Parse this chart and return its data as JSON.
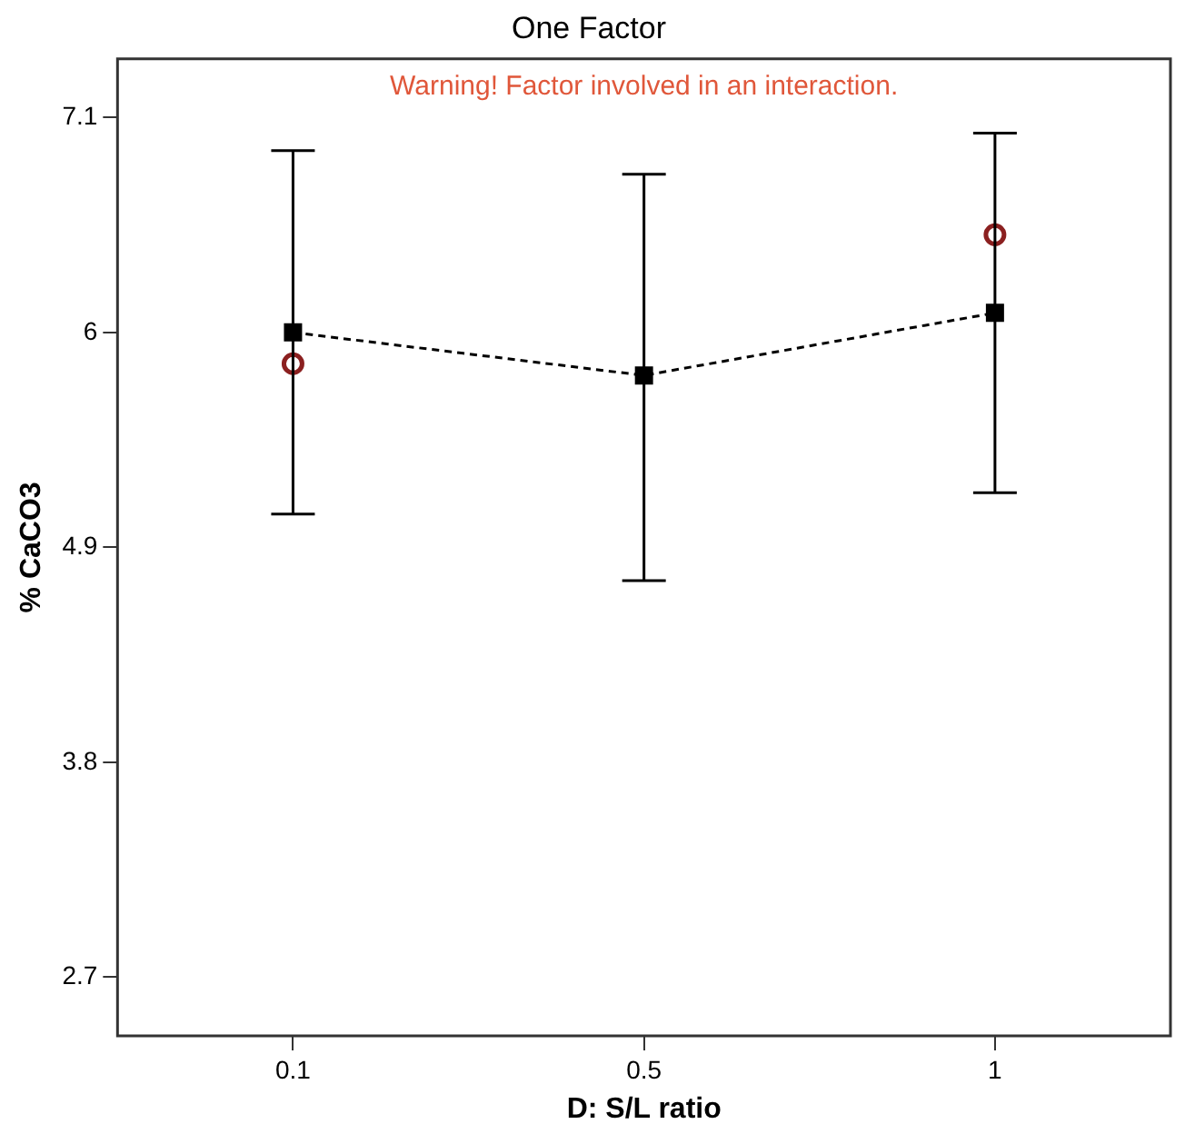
{
  "chart_data": {
    "type": "line",
    "title": "One Factor",
    "xlabel": "D: S/L ratio",
    "ylabel": "% CaCO3",
    "annotations": [
      "Warning! Factor involved in an interaction."
    ],
    "categories": [
      "0.1",
      "0.5",
      "1"
    ],
    "ylim": [
      2.4,
      7.4
    ],
    "yticks": [
      2.7,
      3.8,
      4.9,
      6,
      7.1
    ],
    "grid": false,
    "legend": false,
    "series": [
      {
        "type": "line",
        "color": "#000000",
        "values": [
          6.0,
          5.78,
          6.1
        ],
        "errors": [
          [
            5.07,
            6.93
          ],
          [
            4.73,
            6.81
          ],
          [
            5.18,
            7.02
          ]
        ],
        "marker": "square",
        "line_style": "dashed"
      },
      {
        "type": "scatter",
        "x": [
          "0.1",
          "1"
        ],
        "color": "#8b2020",
        "values": [
          5.84,
          6.5
        ],
        "marker": "circle"
      }
    ]
  }
}
